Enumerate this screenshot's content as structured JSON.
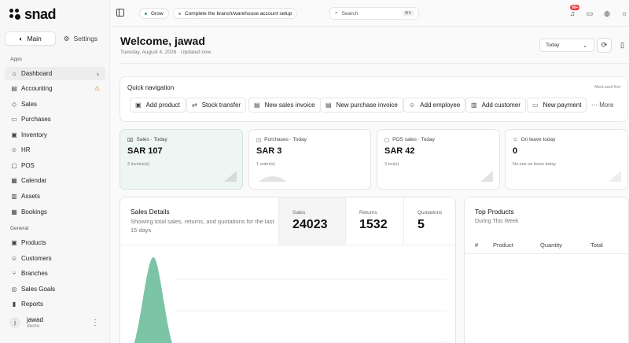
{
  "brand": {
    "name": "snad"
  },
  "sidebar": {
    "modes": [
      {
        "label": "Main",
        "icon": "globe-icon",
        "active": true
      },
      {
        "label": "Settings",
        "icon": "gear-icon",
        "active": false
      }
    ],
    "apps_label": "Apps",
    "apps": [
      {
        "label": "Dashboard",
        "icon": "home-icon",
        "active": true,
        "trail": "›"
      },
      {
        "label": "Accounting",
        "icon": "book-icon",
        "warn": "⚠"
      },
      {
        "label": "Sales",
        "icon": "tag-icon"
      },
      {
        "label": "Purchases",
        "icon": "truck-icon"
      },
      {
        "label": "Inventory",
        "icon": "box-icon"
      },
      {
        "label": "HR",
        "icon": "users-icon"
      },
      {
        "label": "POS",
        "icon": "monitor-icon"
      },
      {
        "label": "Calendar",
        "icon": "calendar-icon"
      },
      {
        "label": "Assets",
        "icon": "briefcase-icon"
      },
      {
        "label": "Bookings",
        "icon": "calendar-check-icon"
      }
    ],
    "general_label": "General",
    "general": [
      {
        "label": "Products",
        "icon": "package-icon"
      },
      {
        "label": "Customers",
        "icon": "users-icon"
      },
      {
        "label": "Branches",
        "icon": "branch-icon"
      },
      {
        "label": "Sales Goals",
        "icon": "target-icon"
      },
      {
        "label": "Reports",
        "icon": "chart-icon"
      }
    ],
    "user": {
      "initial": "j",
      "name": "jawad",
      "sub": "demo"
    }
  },
  "topbar": {
    "chips": [
      "Grow",
      "Complete the branch/warehouse account setup"
    ],
    "search_placeholder": "Search",
    "search_shortcut": "⌘K",
    "notification_badge": "99+"
  },
  "header": {
    "welcome": "Welcome, jawad",
    "date": "Tuesday, August 4, 2026",
    "updated": "Updated now",
    "period": "Today"
  },
  "quick_nav": {
    "title": "Quick navigation",
    "hint": "Most-used first",
    "buttons": [
      {
        "label": "Add product",
        "icon": "package-icon"
      },
      {
        "label": "Stock transfer",
        "icon": "transfer-icon"
      },
      {
        "label": "New sales invoice",
        "icon": "invoice-icon"
      },
      {
        "label": "New purchase invoice",
        "icon": "cart-icon"
      },
      {
        "label": "Add employee",
        "icon": "user-plus-icon"
      },
      {
        "label": "Add customer",
        "icon": "building-icon"
      },
      {
        "label": "New payment",
        "icon": "payment-icon"
      }
    ],
    "more": "More"
  },
  "stats": [
    {
      "label": "Sales · Today",
      "value": "SAR 107",
      "sub": "2 invoice(s)",
      "active": true
    },
    {
      "label": "Purchases · Today",
      "value": "SAR 3",
      "sub": "1 order(s)",
      "active": false
    },
    {
      "label": "POS sales · Today",
      "value": "SAR 42",
      "sub": "3 txn(s)",
      "active": false
    },
    {
      "label": "On leave today",
      "value": "0",
      "sub": "No one on leave today",
      "active": false
    }
  ],
  "sales_details": {
    "title": "Sales Details",
    "description": "Showing total sales, returns, and quotations for the last 15 days",
    "metrics": [
      {
        "label": "Sales",
        "value": "24023"
      },
      {
        "label": "Returns",
        "value": "1532"
      },
      {
        "label": "Quotations",
        "value": "5"
      }
    ],
    "chart_color": "#7cc4a6"
  },
  "top_products": {
    "title": "Top Products",
    "subtitle": "During This Week",
    "columns": [
      "#",
      "Product",
      "Quantity",
      "Total"
    ]
  }
}
